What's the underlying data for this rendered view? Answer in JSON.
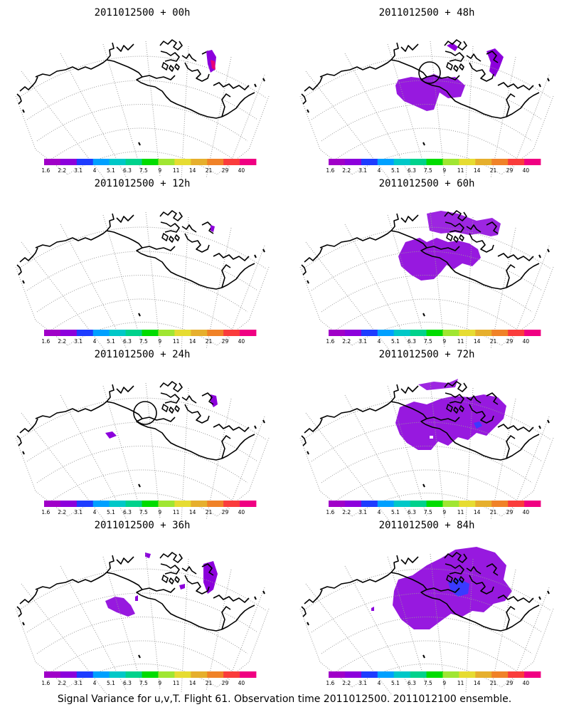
{
  "panels": [
    {
      "id": "p00",
      "title": "2011012500 + 00h",
      "circle": false
    },
    {
      "id": "p48",
      "title": "2011012500 + 48h",
      "circle": true
    },
    {
      "id": "p12",
      "title": "2011012500 + 12h",
      "circle": false
    },
    {
      "id": "p60",
      "title": "2011012500 + 60h",
      "circle": false
    },
    {
      "id": "p24",
      "title": "2011012500 + 24h",
      "circle": true
    },
    {
      "id": "p72",
      "title": "2011012500 + 72h",
      "circle": false
    },
    {
      "id": "p36",
      "title": "2011012500 + 36h",
      "circle": false
    },
    {
      "id": "p84",
      "title": "2011012500 + 84h",
      "circle": false
    }
  ],
  "colorbar": {
    "colors": [
      "#a000c8",
      "#8c00dc",
      "#1e3cff",
      "#00a0ff",
      "#00c8c8",
      "#00d28c",
      "#00dc00",
      "#a0e632",
      "#e6dc32",
      "#e6af2d",
      "#f08228",
      "#fa3c3c",
      "#f00082"
    ],
    "labels": [
      "1.6",
      "2.2",
      "3.1",
      "4",
      "5.1",
      "6.3",
      "7.5",
      "9",
      "11",
      "14",
      "21",
      "29",
      "40"
    ]
  },
  "footer": "Signal Variance for u,v,T. Flight 61. Observation time 2011012500. 2011012100 ensemble.",
  "colors": {
    "background": "#ffffff",
    "coast": "#000000",
    "grid": "#9a9a9a",
    "variance_fill": "#8c00dc",
    "variance_high": "#e6007a",
    "variance_mid": "#3a3aff"
  }
}
